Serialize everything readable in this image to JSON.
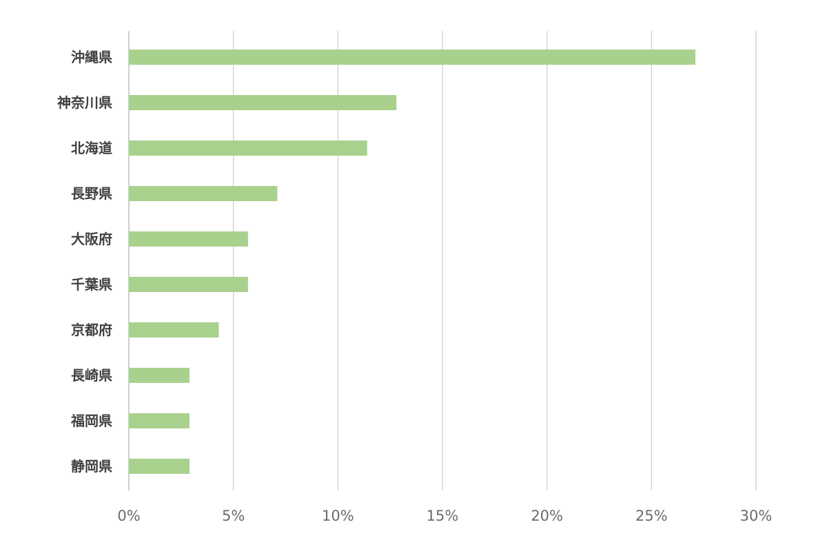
{
  "chart_data": {
    "type": "bar",
    "orientation": "horizontal",
    "categories": [
      "沖縄県",
      "神奈川県",
      "北海道",
      "長野県",
      "大阪府",
      "千葉県",
      "京都府",
      "長崎県",
      "福岡県",
      "静岡県"
    ],
    "values": [
      27.1,
      12.8,
      11.4,
      7.1,
      5.7,
      5.7,
      4.3,
      2.9,
      2.9,
      2.9
    ],
    "x_ticks": [
      "0%",
      "5%",
      "10%",
      "15%",
      "20%",
      "25%",
      "30%"
    ],
    "xlim": [
      0,
      30
    ],
    "xlabel": "",
    "ylabel": "",
    "title": "",
    "grid": "vertical",
    "legend": "none",
    "bar_color": "#a9d18e"
  }
}
